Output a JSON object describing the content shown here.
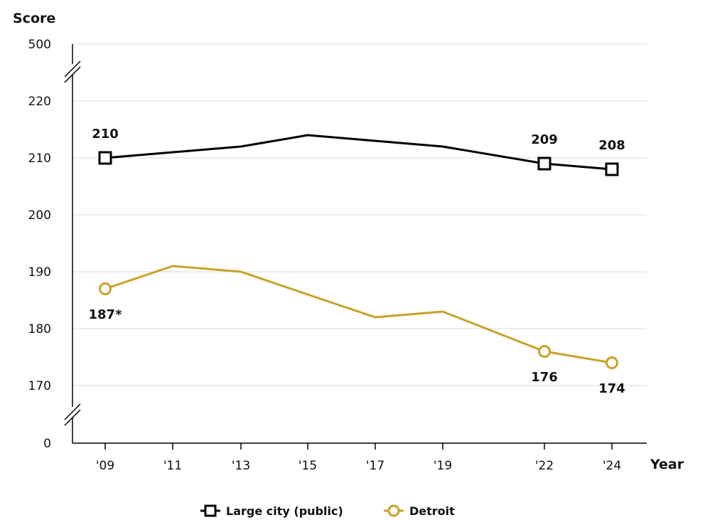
{
  "chart_data": {
    "type": "line",
    "ylabel": "Score",
    "xlabel": "Year",
    "x": [
      "'09",
      "'11",
      "'13",
      "'15",
      "'17",
      "'19",
      "'22",
      "'24"
    ],
    "y_ticks": [
      "500",
      "220",
      "210",
      "200",
      "190",
      "180",
      "170",
      "0"
    ],
    "ylim": [
      170,
      220
    ],
    "axis_breaks": [
      "between 220 and 500",
      "between 0 and 170"
    ],
    "grid": true,
    "legend_position": "bottom",
    "series": [
      {
        "name": "Large city (public)",
        "marker": "square",
        "color": "#000000",
        "values": [
          210,
          211,
          212,
          214,
          213,
          212,
          209,
          208
        ],
        "labels": [
          {
            "index": 0,
            "text": "210",
            "position": "above"
          },
          {
            "index": 6,
            "text": "209",
            "position": "above"
          },
          {
            "index": 7,
            "text": "208",
            "position": "above"
          }
        ]
      },
      {
        "name": "Detroit",
        "marker": "circle",
        "color": "#C9A227",
        "values": [
          187,
          191,
          190,
          186,
          182,
          183,
          176,
          174
        ],
        "labels": [
          {
            "index": 0,
            "text": "187*",
            "position": "below"
          },
          {
            "index": 6,
            "text": "176",
            "position": "below"
          },
          {
            "index": 7,
            "text": "174",
            "position": "below"
          }
        ]
      }
    ]
  }
}
